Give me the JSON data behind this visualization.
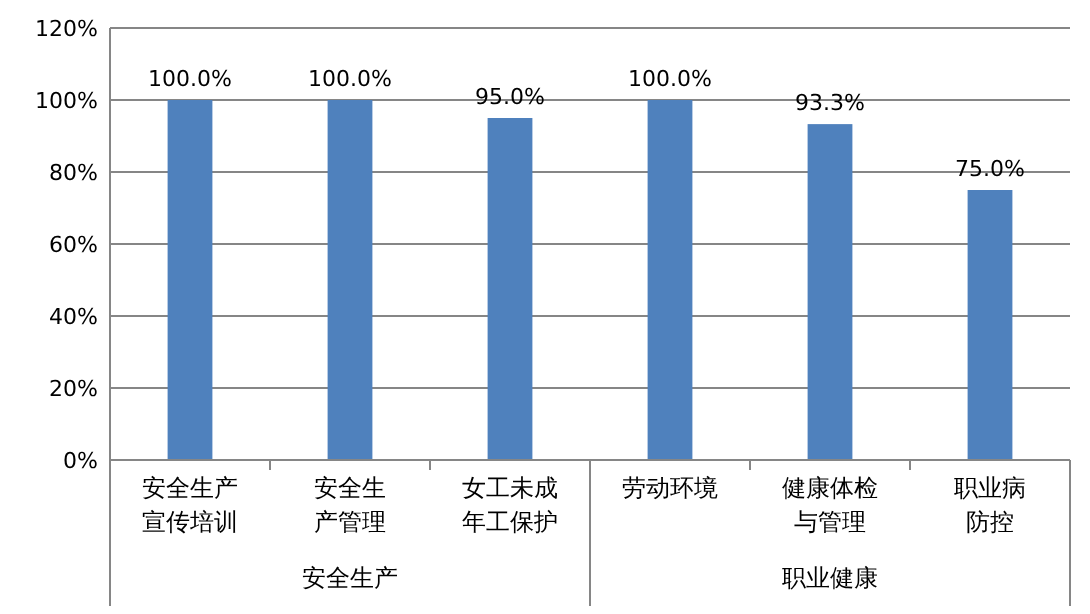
{
  "chart_data": {
    "type": "bar",
    "categories": [
      "安全生产宣传培训",
      "安全生产管理",
      "女工未成年工保护",
      "劳动环境",
      "健康体检与管理",
      "职业病防控"
    ],
    "values": [
      100,
      100,
      95,
      100,
      93.3,
      75
    ],
    "value_labels": [
      "100.0%",
      "100.0%",
      "95.0%",
      "100.0%",
      "93.3%",
      "75.0%"
    ],
    "color": "#4f81bd",
    "ylim": [
      0,
      120
    ],
    "yticks": [
      {
        "value": 0,
        "label": "0%"
      },
      {
        "value": 20,
        "label": "20%"
      },
      {
        "value": 40,
        "label": "40%"
      },
      {
        "value": 60,
        "label": "60%"
      },
      {
        "value": 80,
        "label": "80%"
      },
      {
        "value": 100,
        "label": "100%"
      },
      {
        "value": 120,
        "label": "120%"
      }
    ],
    "grid": "y",
    "annotations": [
      "安全生产",
      "职业健康"
    ]
  }
}
